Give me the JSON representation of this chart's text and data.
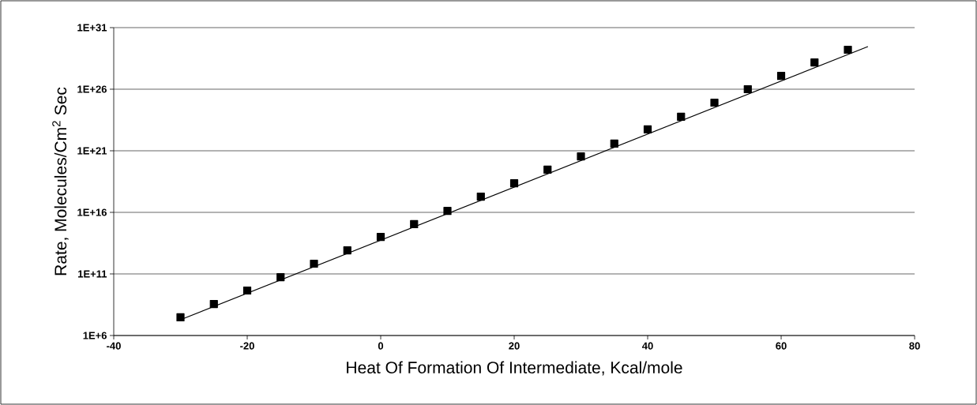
{
  "chart_data": {
    "type": "scatter",
    "xlabel": "Heat Of Formation Of Intermediate, Kcal/mole",
    "ylabel": "Rate, Molecules/Cm$^{2}$ Sec",
    "xlim": [
      -40,
      80
    ],
    "xticks": [
      -40,
      -20,
      0,
      20,
      40,
      60,
      80
    ],
    "ylim": [
      1000000.0,
      1e+31
    ],
    "yticks": [
      {
        "value": 1000000.0,
        "label": "1E+6"
      },
      {
        "value": 100000000000.0,
        "label": "1E+11"
      },
      {
        "value": 1e+16,
        "label": "1E+16"
      },
      {
        "value": 1e+21,
        "label": "1E+21"
      },
      {
        "value": 1e+26,
        "label": "1E+26"
      },
      {
        "value": 1e+31,
        "label": "1E+31"
      }
    ],
    "log": "y",
    "grid": "y",
    "marker": "square",
    "series": [
      {
        "color": "#000000",
        "x": [
          -30,
          -25,
          -20,
          -15,
          -10,
          -5,
          0,
          5,
          10,
          15,
          20,
          25,
          30,
          35,
          40,
          45,
          50,
          55,
          60,
          65,
          70
        ],
        "values": [
          30000000.0,
          360000000.0,
          4500000000.0,
          55000000000.0,
          680000000000.0,
          8300000000000.0,
          100000000000000.0,
          1100000000000000.0,
          1.3e+16,
          1.9e+17,
          2.3e+18,
          2.9e+19,
          3.5e+20,
          3.8e+21,
          5.4e+22,
          5.8e+23,
          8.1e+24,
          1e+26,
          1.2e+27,
          1.5e+28,
          1.6e+29
        ]
      },
      {
        "type": "line",
        "color": "#000000",
        "marker": "none",
        "x": [
          -30,
          73
        ],
        "values": [
          19000000.0,
          2.9e+29
        ]
      }
    ]
  }
}
